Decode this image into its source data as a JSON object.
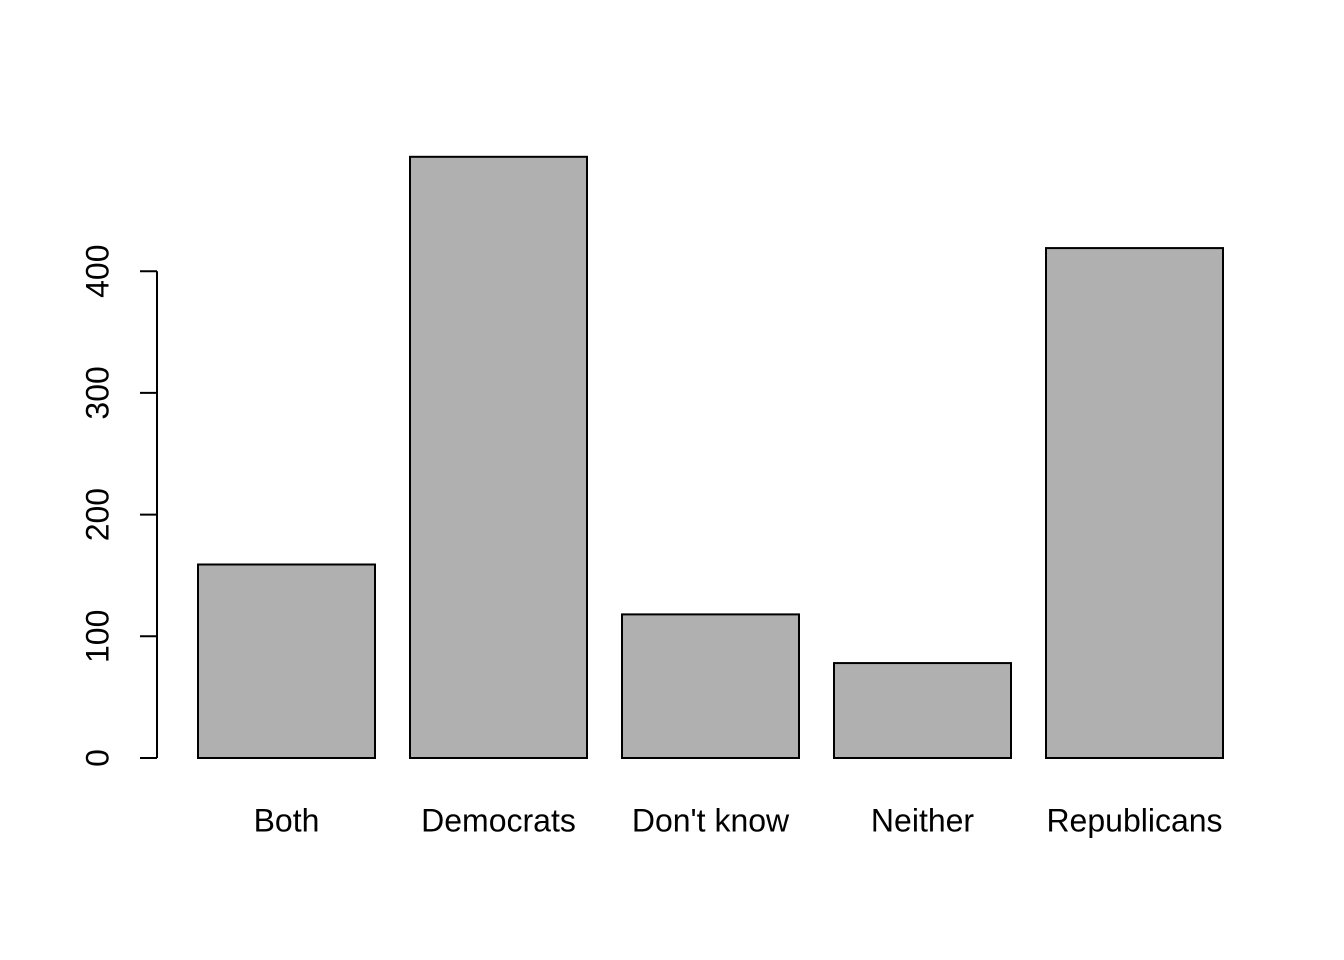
{
  "chart_data": {
    "type": "bar",
    "categories": [
      "Both",
      "Democrats",
      "Don't know",
      "Neither",
      "Republicans"
    ],
    "values": [
      159,
      494,
      118,
      78,
      419
    ],
    "title": "",
    "xlabel": "",
    "ylabel": "",
    "ylim": [
      0,
      494
    ],
    "yticks": [
      0,
      100,
      200,
      300,
      400
    ],
    "ytick_labels": [
      "0",
      "100",
      "200",
      "300",
      "400"
    ],
    "grid": false,
    "legend": "none",
    "bar_fill": "#b0b0b0",
    "bar_stroke": "#000000"
  }
}
